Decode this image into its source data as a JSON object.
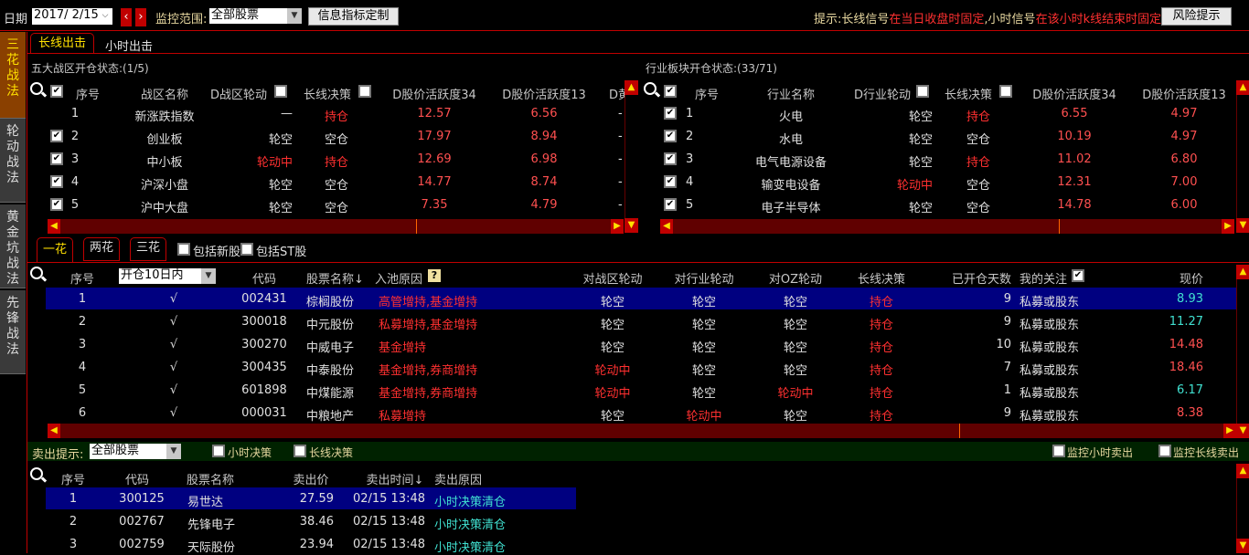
{
  "toolbar": {
    "date_label": "日期",
    "date_value": "2017/ 2/15",
    "scope_label": "监控范围:",
    "scope_value": "全部股票",
    "indicator_button": "信息指标定制",
    "hint_label": "提示:",
    "hint_1": "长线信号",
    "hint_2": "在当日收盘时固定",
    "hint_3": ",小时信号",
    "hint_4": "在该小时k线结束时固定",
    "hint_5": "。",
    "risk_button": "风险提示"
  },
  "side_tabs": [
    {
      "label": "三花战法",
      "active": true
    },
    {
      "label": "轮动战法"
    },
    {
      "label": "黄金坑战法"
    },
    {
      "label": "先锋战法"
    }
  ],
  "main_tabs": [
    "长线出击",
    "小时出击"
  ],
  "zones": {
    "title": "五大战区开仓状态:(1/5)",
    "headers": [
      "序号",
      "战区名称",
      "D战区轮动",
      "长线决策",
      "D股价活跃度34",
      "D股价活跃度13",
      "D黄"
    ],
    "rows": [
      {
        "checked": false,
        "no": "1",
        "name": "新涨跌指数",
        "rot": "—",
        "dec": "持仓",
        "a34": "12.57",
        "a13": "6.56"
      },
      {
        "checked": true,
        "no": "2",
        "name": "创业板",
        "rot": "轮空",
        "dec": "空仓",
        "a34": "17.97",
        "a13": "8.94"
      },
      {
        "checked": true,
        "no": "3",
        "name": "中小板",
        "rot": "轮动中",
        "dec": "持仓",
        "a34": "12.69",
        "a13": "6.98"
      },
      {
        "checked": true,
        "no": "4",
        "name": "沪深小盘",
        "rot": "轮空",
        "dec": "空仓",
        "a34": "14.77",
        "a13": "8.74"
      },
      {
        "checked": true,
        "no": "5",
        "name": "沪中大盘",
        "rot": "轮空",
        "dec": "空仓",
        "a34": "7.35",
        "a13": "4.79"
      }
    ]
  },
  "industry": {
    "title": "行业板块开仓状态:(33/71)",
    "headers": [
      "序号",
      "行业名称",
      "D行业轮动",
      "长线决策",
      "D股价活跃度34",
      "D股价活跃度13"
    ],
    "rows": [
      {
        "no": "1",
        "name": "火电",
        "rot": "轮空",
        "dec": "持仓",
        "a34": "6.55",
        "a13": "4.97"
      },
      {
        "no": "2",
        "name": "水电",
        "rot": "轮空",
        "dec": "空仓",
        "a34": "10.19",
        "a13": "4.97"
      },
      {
        "no": "3",
        "name": "电气电源设备",
        "rot": "轮空",
        "dec": "持仓",
        "a34": "11.02",
        "a13": "6.80"
      },
      {
        "no": "4",
        "name": "输变电设备",
        "rot": "轮动中",
        "dec": "空仓",
        "a34": "12.31",
        "a13": "7.00"
      },
      {
        "no": "5",
        "name": "电子半导体",
        "rot": "轮空",
        "dec": "空仓",
        "a34": "14.78",
        "a13": "6.00"
      }
    ]
  },
  "flower_tabs": [
    "一花",
    "两花",
    "三花"
  ],
  "filters": {
    "new": "包括新股",
    "st": "包括ST股"
  },
  "stocks": {
    "headers": {
      "no": "序号",
      "period": "开仓10日内",
      "code": "代码",
      "name": "股票名称↓",
      "reason": "入池原因",
      "zone": "对战区轮动",
      "ind": "对行业轮动",
      "oz": "对OZ轮动",
      "dec": "长线决策",
      "days": "已开仓天数",
      "watch": "我的关注",
      "price": "现价"
    },
    "rows": [
      {
        "no": "1",
        "mark": "√",
        "code": "002431",
        "name": "棕榈股份",
        "reason": "高管增持,基金增持",
        "zone": "轮空",
        "ind": "轮空",
        "oz": "轮空",
        "dec": "持仓",
        "days": "9",
        "watch": "私募或股东",
        "price": "8.93",
        "up": false
      },
      {
        "no": "2",
        "mark": "√",
        "code": "300018",
        "name": "中元股份",
        "reason": "私募增持,基金增持",
        "zone": "轮空",
        "ind": "轮空",
        "oz": "轮空",
        "dec": "持仓",
        "days": "9",
        "watch": "私募或股东",
        "price": "11.27",
        "up": false
      },
      {
        "no": "3",
        "mark": "√",
        "code": "300270",
        "name": "中威电子",
        "reason": "基金增持",
        "zone": "轮空",
        "ind": "轮空",
        "oz": "轮空",
        "dec": "持仓",
        "days": "10",
        "watch": "私募或股东",
        "price": "14.48",
        "up": true
      },
      {
        "no": "4",
        "mark": "√",
        "code": "300435",
        "name": "中泰股份",
        "reason": "基金增持,券商增持",
        "zone": "轮动中",
        "ind": "轮空",
        "oz": "轮空",
        "dec": "持仓",
        "days": "7",
        "watch": "私募或股东",
        "price": "18.46",
        "up": true
      },
      {
        "no": "5",
        "mark": "√",
        "code": "601898",
        "name": "中煤能源",
        "reason": "基金增持,券商增持",
        "zone": "轮动中",
        "ind": "轮空",
        "oz": "轮动中",
        "dec": "持仓",
        "days": "1",
        "watch": "私募或股东",
        "price": "6.17",
        "up": false
      },
      {
        "no": "6",
        "mark": "√",
        "code": "000031",
        "name": "中粮地产",
        "reason": "私募增持",
        "zone": "轮空",
        "ind": "轮动中",
        "oz": "轮空",
        "dec": "持仓",
        "days": "9",
        "watch": "私募或股东",
        "price": "8.38",
        "up": true
      }
    ]
  },
  "sell_bar": {
    "label": "卖出提示:",
    "scope": "全部股票",
    "hour": "小时决策",
    "long": "长线决策",
    "mon_hour": "监控小时卖出",
    "mon_long": "监控长线卖出"
  },
  "sells": {
    "headers": [
      "序号",
      "代码",
      "股票名称",
      "卖出价",
      "卖出时间↓",
      "卖出原因"
    ],
    "rows": [
      {
        "no": "1",
        "code": "300125",
        "name": "易世达",
        "price": "27.59",
        "time": "02/15 13:48",
        "reason": "小时决策清仓"
      },
      {
        "no": "2",
        "code": "002767",
        "name": "先锋电子",
        "price": "38.46",
        "time": "02/15 13:48",
        "reason": "小时决策清仓"
      },
      {
        "no": "3",
        "code": "002759",
        "name": "天际股份",
        "price": "23.94",
        "time": "02/15 13:48",
        "reason": "小时决策清仓"
      }
    ]
  },
  "colors": {
    "red": "#ff3030",
    "cyan": "#40e0d0",
    "highlight": "#000080",
    "border": "#c00000"
  }
}
